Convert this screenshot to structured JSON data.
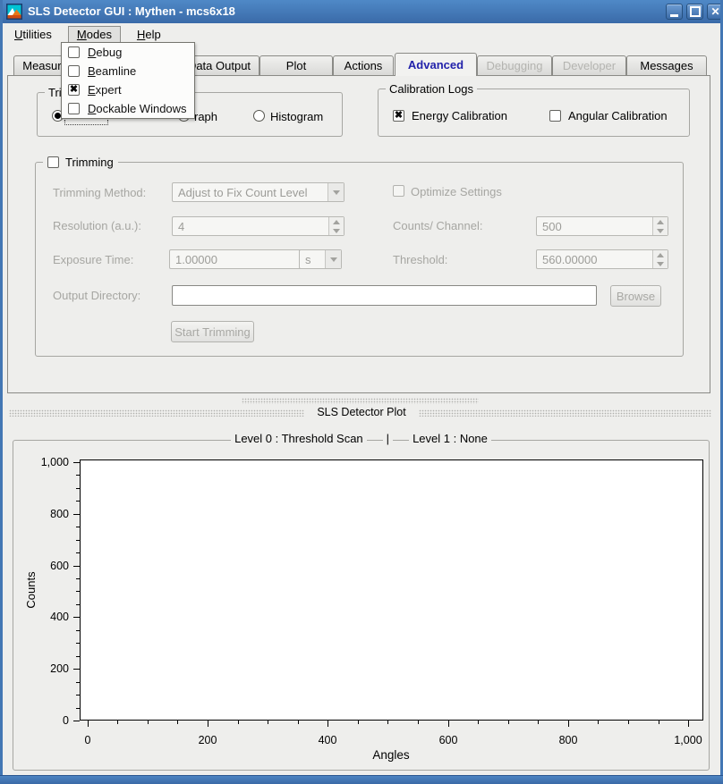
{
  "window": {
    "title": "SLS Detector GUI : Mythen - mcs6x18",
    "controls": {
      "minimize": "minimize",
      "maximize": "maximize",
      "close": "✕"
    },
    "colors": {
      "titlebar_top": "#4f89c7",
      "titlebar_bottom": "#3a6aa8",
      "frame": "#4377b4",
      "selected_tab_text": "#2222aa",
      "background": "#eeeeec"
    }
  },
  "menubar": {
    "items": [
      {
        "label": "Utilities"
      },
      {
        "label": "Modes"
      },
      {
        "label": "Help"
      }
    ]
  },
  "modes_menu": {
    "items": [
      {
        "label": "Debug",
        "checked": false
      },
      {
        "label": "Beamline",
        "checked": false
      },
      {
        "label": "Expert",
        "checked": true
      },
      {
        "label": "Dockable Windows",
        "checked": false
      }
    ]
  },
  "tabs": {
    "items": [
      {
        "label": "Measurement",
        "state": "normal"
      },
      {
        "label": "",
        "state": "hidden-behind-menu"
      },
      {
        "label": "Data Output",
        "state": "normal"
      },
      {
        "label": "Plot",
        "state": "normal"
      },
      {
        "label": "Actions",
        "state": "normal"
      },
      {
        "label": "Advanced",
        "state": "selected"
      },
      {
        "label": "Debugging",
        "state": "disabled"
      },
      {
        "label": "Developer",
        "state": "disabled"
      },
      {
        "label": "Messages",
        "state": "normal"
      }
    ]
  },
  "advanced_tab": {
    "trim_plot_group": {
      "title_visible_fragment": "Trim",
      "radios": [
        {
          "label": "",
          "selected": true
        },
        {
          "label": "raph",
          "selected": false
        },
        {
          "label": "Histogram",
          "selected": false
        }
      ]
    },
    "calibration_group": {
      "title": "Calibration Logs",
      "checkboxes": [
        {
          "label": "Energy Calibration",
          "checked": true
        },
        {
          "label": "Angular Calibration",
          "checked": false
        }
      ]
    },
    "trimming_group": {
      "title": "Trimming",
      "title_checked": false,
      "trimming_method": {
        "label": "Trimming Method:",
        "value": "Adjust to Fix Count Level"
      },
      "resolution": {
        "label": "Resolution (a.u.):",
        "value": "4"
      },
      "exposure_time": {
        "label": "Exposure Time:",
        "value": "1.00000",
        "unit": "s"
      },
      "optimize": {
        "label": "Optimize Settings",
        "checked": false
      },
      "counts_channel": {
        "label": "Counts/ Channel:",
        "value": "500"
      },
      "threshold": {
        "label": "Threshold:",
        "value": "560.00000"
      },
      "output_directory": {
        "label": "Output Directory:",
        "value": ""
      },
      "browse_label": "Browse",
      "start_label": "Start Trimming"
    }
  },
  "plot_section": {
    "dock_title": "SLS Detector Plot",
    "group_title_left": "Level 0 : Threshold Scan",
    "group_title_sep": "|",
    "group_title_right": "Level 1 : None"
  },
  "chart_data": {
    "type": "line",
    "title": "Level 0 : Threshold Scan | Level 1 : None",
    "xlabel": "Angles",
    "ylabel": "Counts",
    "x_ticks": [
      0,
      200,
      400,
      600,
      800,
      1000
    ],
    "y_ticks": [
      0,
      200,
      400,
      600,
      800,
      1000
    ],
    "x_minor_step": 50,
    "y_minor_step": 50,
    "xlim": [
      -13,
      1025
    ],
    "ylim": [
      0,
      1010
    ],
    "grid": false,
    "legend": false,
    "series": []
  }
}
